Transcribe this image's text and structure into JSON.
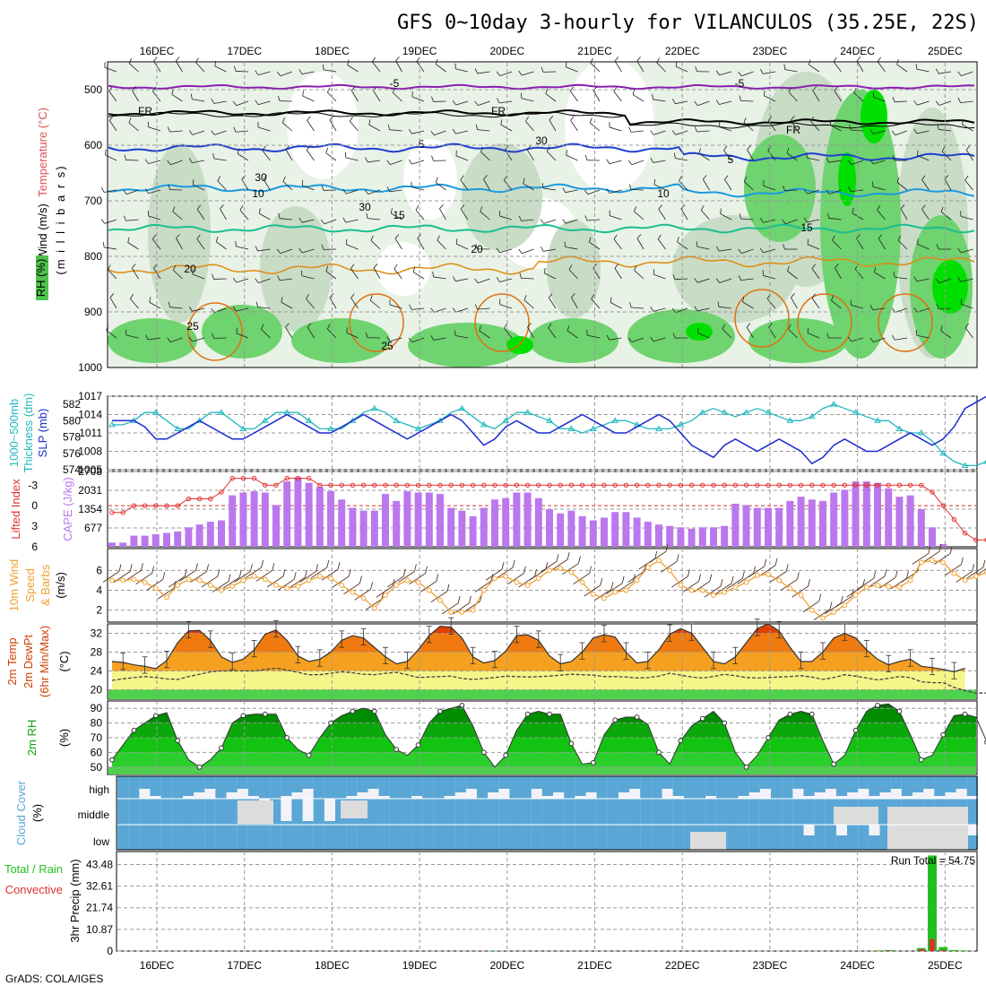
{
  "title": "GFS 0~10day 3-hourly for VILANCULOS (35.25E, 22S)",
  "footer": "GrADS: COLA/IGES",
  "dates": [
    "16DEC",
    "17DEC",
    "18DEC",
    "19DEC",
    "20DEC",
    "21DEC",
    "22DEC",
    "23DEC",
    "24DEC",
    "25DEC"
  ],
  "colors": {
    "rh_light": "#e8f2e6",
    "rh_mid": "#c8dcc6",
    "rh_green": "#6fd36f",
    "rh_bright": "#00e000",
    "temp_m5": "#8a1fb0",
    "fr": "#000000",
    "temp_5": "#1f3fd0",
    "temp_10": "#1a9ae0",
    "temp_15": "#1abf8f",
    "temp_20": "#e08a10",
    "temp_25": "#e07010",
    "slp": "#1a2ad0",
    "thick": "#20b8c0",
    "li": "#e03030",
    "cape": "#bb77ee",
    "wind": "#f0a030",
    "t2m_hot": "#e04000",
    "t2m_warm": "#f5a020",
    "t2m_mild": "#f5f58a",
    "rh2m": "#10c010",
    "cloud": "#5aa7d6",
    "cloud_bg": "#f2f2f8",
    "cloud_gap": "#dcdcdc",
    "precip": "#20c020",
    "convective": "#e03030"
  },
  "panels": {
    "upper": {
      "labels": [
        "Wind (m/s)",
        "Temperature (°C)",
        "RH (%)",
        "(m i l l i b a r s)"
      ],
      "ticks": [
        "500",
        "600",
        "700",
        "800",
        "900",
        "1000"
      ],
      "contour_labels": [
        "-5",
        "-5",
        "FR",
        "FR",
        "FR",
        "5",
        "5",
        "10",
        "10",
        "15",
        "15",
        "20",
        "20",
        "25",
        "25",
        "30",
        "30",
        "30"
      ]
    },
    "slp": {
      "labels": [
        "1000~500mb",
        "Thickness (dm)",
        "SLP (mb)"
      ],
      "left_ticks": [
        "582",
        "580",
        "578",
        "576",
        "574"
      ],
      "right_ticks": [
        "1017",
        "1014",
        "1011",
        "1008",
        "1005"
      ]
    },
    "cape": {
      "labels": [
        "Lifted Index",
        "CAPE (J/kg)"
      ],
      "left_ticks": [
        "-3",
        "0",
        "3",
        "6"
      ],
      "right_ticks": [
        "2708",
        "2031",
        "1354",
        "677"
      ]
    },
    "wind": {
      "labels": [
        "10m Wind",
        "Speed",
        "& Barbs",
        "(m/s)"
      ],
      "ticks": [
        "6",
        "4",
        "2"
      ]
    },
    "temp": {
      "labels": [
        "2m Temp",
        "2m DewPt",
        "(6hr Min/Max)",
        "(°C)"
      ],
      "ticks": [
        "32",
        "28",
        "24",
        "20"
      ]
    },
    "rh": {
      "labels": [
        "2m RH",
        "(%)"
      ],
      "ticks": [
        "90",
        "80",
        "70",
        "60",
        "50"
      ]
    },
    "cloud": {
      "labels": [
        "Cloud Cover",
        "(%)"
      ],
      "levels": [
        "high",
        "middle",
        "low"
      ]
    },
    "precip": {
      "labels": [
        "Total / Rain",
        "Convective",
        "3hr Precip (mm)"
      ],
      "ticks": [
        "43.48",
        "32.61",
        "21.74",
        "10.87",
        "0"
      ],
      "run_total": "Run Total = 54.75"
    }
  },
  "chart_data": [
    {
      "type": "line",
      "title": "1000~500mb Thickness (dm) and SLP (mb)",
      "x_unit": "3-hourly steps from 15 DEC 12Z",
      "series": [
        {
          "name": "SLP (mb)",
          "axis": "right",
          "ylim": [
            1005,
            1017
          ],
          "values": [
            1013,
            1013,
            1013,
            1012,
            1010,
            1010,
            1011,
            1012,
            1013,
            1012,
            1011,
            1010,
            1010,
            1011,
            1012,
            1013,
            1014,
            1013,
            1012,
            1011,
            1011,
            1012,
            1013,
            1014,
            1013,
            1012,
            1011,
            1010,
            1011,
            1012,
            1013,
            1014,
            1013,
            1011,
            1009,
            1010,
            1012,
            1013,
            1012,
            1011,
            1011,
            1012,
            1013,
            1014,
            1013,
            1012,
            1011,
            1011,
            1012,
            1013,
            1014,
            1013,
            1011,
            1009,
            1008,
            1007,
            1009,
            1010,
            1009,
            1008,
            1009,
            1010,
            1009,
            1008,
            1006,
            1007,
            1009,
            1010,
            1009,
            1008,
            1008,
            1009,
            1010,
            1011,
            1010,
            1009,
            1010,
            1012,
            1015,
            1016,
            1017
          ]
        },
        {
          "name": "1000~500mb Thickness (dm)",
          "axis": "left",
          "ylim": [
            574,
            583
          ],
          "values": [
            579.5,
            579.5,
            580,
            581,
            581,
            580,
            579,
            579,
            580,
            581,
            581,
            580,
            579,
            579,
            580,
            581,
            581,
            581,
            580,
            579,
            579,
            579,
            580,
            581,
            581.5,
            581,
            580,
            579.5,
            579,
            579.5,
            580,
            581,
            581.5,
            580.5,
            579.5,
            579,
            580,
            581,
            581,
            580.5,
            580,
            579,
            579,
            578.5,
            579,
            579.5,
            580,
            580,
            579.5,
            579,
            579,
            579,
            579.5,
            580,
            581,
            581.5,
            581,
            580.5,
            581,
            581.5,
            581,
            580.5,
            580,
            580,
            580.5,
            581.5,
            582,
            581.5,
            581,
            580.5,
            580,
            580,
            579,
            578.5,
            578.5,
            577.5,
            576,
            575,
            574.5,
            574.5,
            575
          ]
        }
      ]
    },
    {
      "type": "bar",
      "title": "CAPE (J/kg) with Lifted Index",
      "series": [
        {
          "name": "CAPE (J/kg)",
          "axis": "right",
          "ylim": [
            0,
            2708
          ],
          "values": [
            150,
            150,
            400,
            400,
            450,
            500,
            550,
            700,
            800,
            900,
            950,
            1850,
            1950,
            2000,
            1950,
            1500,
            2350,
            2500,
            2300,
            2150,
            2000,
            1700,
            1400,
            1300,
            1300,
            1900,
            1650,
            2000,
            1950,
            1950,
            1900,
            1400,
            1300,
            1100,
            1400,
            1700,
            1750,
            1950,
            1950,
            1750,
            1350,
            1200,
            1300,
            1100,
            950,
            1050,
            1250,
            1250,
            1050,
            900,
            800,
            750,
            700,
            650,
            700,
            700,
            750,
            1550,
            1500,
            1400,
            1400,
            1400,
            1650,
            1800,
            1700,
            1650,
            1950,
            2050,
            2350,
            2350,
            2300,
            2100,
            1800,
            1850,
            1350,
            700,
            100,
            0,
            0,
            0,
            0
          ]
        },
        {
          "name": "Lifted Index",
          "axis": "left",
          "ylim": [
            6,
            -5
          ],
          "type": "line",
          "values": [
            1,
            1,
            0,
            0,
            0,
            0,
            0,
            -1,
            -1,
            -1,
            -2,
            -4,
            -4,
            -4,
            -3,
            -3,
            -4,
            -4,
            -4,
            -3,
            -3,
            -3,
            -3,
            -3,
            -3,
            -3,
            -3,
            -3,
            -3,
            -3,
            -3,
            -3,
            -3,
            -3,
            -3,
            -3,
            -3,
            -3,
            -3,
            -3,
            -3,
            -3,
            -3,
            -3,
            -3,
            -3,
            -3,
            -3,
            -3,
            -3,
            -3,
            -3,
            -3,
            -3,
            -3,
            -3,
            -3,
            -3,
            -3,
            -3,
            -3,
            -3,
            -3,
            -3,
            -3,
            -3,
            -3,
            -3,
            -3,
            -3,
            -3,
            -3,
            -3,
            -3,
            -3,
            -2,
            0,
            2,
            4,
            5,
            5
          ]
        }
      ]
    },
    {
      "type": "line",
      "title": "10m Wind Speed (m/s)",
      "ylim": [
        0.8,
        8.2
      ],
      "values": [
        5,
        5,
        5.1,
        4.8,
        4.2,
        3.3,
        4.5,
        5.1,
        5,
        4.5,
        4,
        4.4,
        5,
        5.4,
        5.1,
        4.5,
        4.2,
        4.4,
        5,
        5.4,
        5.2,
        4.5,
        3.8,
        3.2,
        2.2,
        3.5,
        4.5,
        5,
        4.8,
        4,
        3,
        1.8,
        1.8,
        2,
        4,
        5.2,
        5.4,
        4.8,
        4.5,
        5.2,
        6,
        6.2,
        5.8,
        4.8,
        3.6,
        3.2,
        3.8,
        4,
        5,
        6.3,
        7,
        6,
        4.5,
        4,
        4,
        3.5,
        3.8,
        4.3,
        4.8,
        5.5,
        5.6,
        5,
        4.2,
        3.5,
        2,
        1.2,
        1.8,
        2.5,
        3.5,
        4.3,
        4.5,
        4.4,
        4.3,
        5,
        6.8,
        7,
        6.8,
        5.7,
        5,
        5.4,
        5.8
      ]
    },
    {
      "type": "area",
      "title": "2m Temp (°C)",
      "ylim": [
        18,
        34
      ],
      "values": [
        26,
        25.8,
        25.3,
        25,
        24.5,
        26.2,
        30,
        32.5,
        32.6,
        30.5,
        27,
        25.8,
        26.5,
        28.5,
        31.8,
        32.7,
        30.5,
        27.2,
        26,
        26.5,
        28,
        30.5,
        31.5,
        31,
        29,
        27,
        25.5,
        26,
        28.5,
        31.5,
        33.5,
        33.3,
        31,
        27,
        25.7,
        26.2,
        28.2,
        31.5,
        31.7,
        30.5,
        27.2,
        25.5,
        26,
        28,
        31,
        31.7,
        31.2,
        28,
        25.7,
        26,
        28.5,
        31.8,
        33,
        32,
        29,
        26,
        25.5,
        27,
        30,
        33,
        34,
        32.5,
        29,
        26,
        26,
        28,
        31,
        32,
        31,
        28.5,
        26.5,
        25.3,
        26,
        26.5,
        25,
        24.7,
        24.3,
        23.8,
        24.6
      ]
    },
    {
      "type": "line",
      "title": "2m DewPt (°C)",
      "ylim": [
        18,
        34
      ],
      "values": [
        22,
        22.3,
        22.6,
        22.8,
        22.6,
        22.3,
        22.2,
        22.8,
        23.3,
        23.8,
        24,
        24,
        24,
        24,
        24.3,
        24.6,
        24.2,
        23.7,
        23.2,
        23.2,
        23.5,
        23.8,
        23.6,
        23.3,
        23.2,
        23.5,
        23.7,
        23.2,
        22.6,
        22.7,
        22.8,
        22.9,
        22.4,
        22.2,
        22.4,
        22.6,
        22.9,
        22.8,
        22.7,
        22.8,
        22.9,
        23.1,
        23.3,
        23.2,
        23.1,
        22.8,
        22.8,
        22.7,
        22.5,
        22.6,
        22.9,
        23.5,
        23.1,
        22.7,
        22.5,
        22.8,
        23.3,
        23,
        22.6,
        22.5,
        22.6,
        22.7,
        22.8,
        23,
        22.7,
        22.2,
        22.6,
        23.2,
        22.9,
        22.5,
        22.1,
        22.4,
        22.8,
        22.6,
        21.7,
        21.5,
        21.5,
        20.5,
        19.8,
        19.3,
        19.3
      ]
    },
    {
      "type": "area",
      "title": "2m RH (%)",
      "ylim": [
        45,
        95
      ],
      "values": [
        55,
        65,
        75,
        80,
        85,
        87,
        68,
        55,
        50,
        55,
        63,
        80,
        85,
        86,
        86,
        86,
        70,
        62,
        58,
        70,
        80,
        85,
        88,
        90,
        88,
        72,
        62,
        58,
        65,
        80,
        88,
        90,
        92,
        78,
        60,
        50,
        58,
        75,
        86,
        88,
        86,
        86,
        66,
        52,
        53,
        72,
        82,
        84,
        84,
        79,
        60,
        52,
        68,
        78,
        83,
        88,
        80,
        60,
        50,
        58,
        70,
        82,
        86,
        88,
        86,
        68,
        52,
        58,
        75,
        88,
        92,
        93,
        88,
        72,
        55,
        58,
        72,
        85,
        86,
        84,
        67
      ]
    },
    {
      "type": "bar",
      "title": "3hr Precip (mm)",
      "ylim": [
        0,
        50
      ],
      "run_total": 54.75,
      "series": [
        {
          "name": "Total / Rain",
          "values": [
            0,
            0,
            0,
            0,
            0,
            0,
            0,
            0,
            0,
            0,
            0,
            0,
            0,
            0,
            0,
            0,
            0,
            0,
            0,
            0,
            0,
            0,
            0,
            0,
            0,
            0,
            0,
            0,
            0,
            0,
            0,
            0,
            0,
            0,
            0,
            0.2,
            0,
            0,
            0,
            0,
            0,
            0,
            0,
            0,
            0,
            0,
            0,
            0,
            0,
            0,
            0,
            0,
            0,
            0,
            0,
            0,
            0,
            0,
            0,
            0,
            0,
            0,
            0,
            0,
            0,
            0,
            0,
            0,
            0,
            0,
            0.3,
            0.5,
            0,
            0,
            1.5,
            48,
            2,
            0.5,
            0.3,
            0,
            0
          ]
        },
        {
          "name": "Convective",
          "values": [
            0,
            0,
            0,
            0,
            0,
            0,
            0,
            0,
            0,
            0,
            0,
            0,
            0,
            0,
            0,
            0,
            0,
            0,
            0,
            0,
            0,
            0,
            0,
            0,
            0,
            0,
            0,
            0,
            0,
            0,
            0,
            0,
            0,
            0,
            0,
            0,
            0,
            0,
            0,
            0,
            0,
            0,
            0,
            0,
            0,
            0,
            0,
            0,
            0,
            0,
            0,
            0,
            0,
            0,
            0,
            0,
            0,
            0,
            0,
            0,
            0,
            0,
            0,
            0,
            0,
            0,
            0,
            0,
            0,
            0,
            0.2,
            0.3,
            0,
            0,
            1,
            6,
            0.5,
            0,
            0,
            0,
            0
          ]
        }
      ]
    }
  ]
}
